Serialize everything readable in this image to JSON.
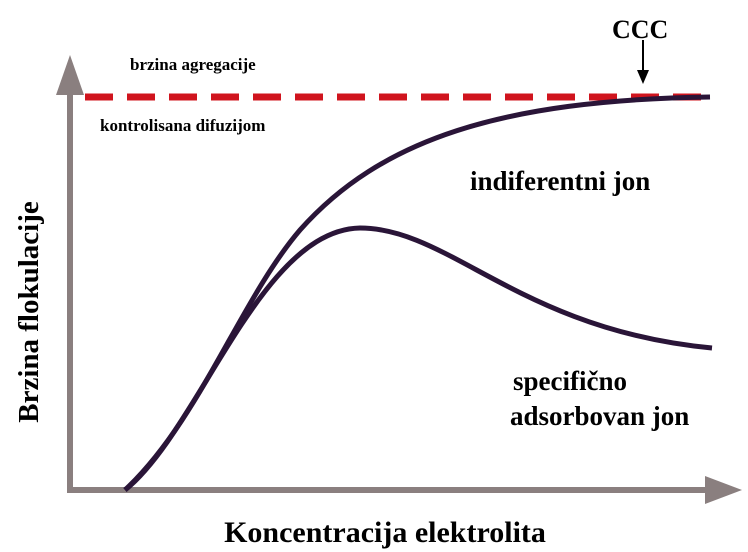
{
  "diagram": {
    "y_axis_label": "Brzina flokulacije",
    "x_axis_label": "Koncentracija elektrolita",
    "limit_label_top": "brzina agregacije",
    "limit_label_bottom": "kontrolisana difuzijom",
    "ccc_label": "CCC",
    "curve_labels": [
      "indiferentni jon",
      "specifično",
      "adsorbovan jon"
    ]
  }
}
